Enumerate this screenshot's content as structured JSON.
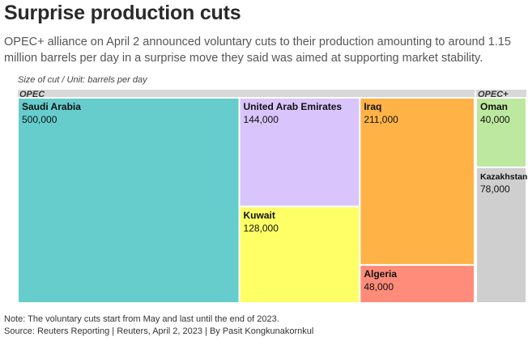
{
  "header": {
    "title": "Surprise production cuts",
    "subtitle": "OPEC+ alliance on April 2 announced voluntary cuts to their production amounting to around 1.15 million barrels per day in a surprise move they said was aimed at supporting market stability.",
    "size_note": "Size of cut / Unit: barrels per day"
  },
  "footer": {
    "note": "Note: The voluntary cuts start from May and last until the end of 2023.",
    "source": "Source: Reuters Reporting | Reuters, April 2, 2023 | By Pasit Kongkunakornkul"
  },
  "chart_data": {
    "type": "treemap",
    "unit": "barrels per day",
    "groups": [
      {
        "name": "OPEC",
        "items": [
          {
            "name": "Saudi Arabia",
            "value": 500000,
            "label": "500,000",
            "color": "#66cdcc"
          },
          {
            "name": "United Arab Emirates",
            "value": 144000,
            "label": "144,000",
            "color": "#d9c4fb"
          },
          {
            "name": "Kuwait",
            "value": 128000,
            "label": "128,000",
            "color": "#ffff66"
          },
          {
            "name": "Iraq",
            "value": 211000,
            "label": "211,000",
            "color": "#ffb347"
          },
          {
            "name": "Algeria",
            "value": 48000,
            "label": "48,000",
            "color": "#ff8c7a"
          }
        ]
      },
      {
        "name": "OPEC+",
        "items": [
          {
            "name": "Oman",
            "value": 40000,
            "label": "40,000",
            "color": "#bde8a0"
          },
          {
            "name": "Kazakhstan",
            "value": 78000,
            "label": "78,000",
            "color": "#cfcfcf"
          }
        ]
      }
    ]
  }
}
